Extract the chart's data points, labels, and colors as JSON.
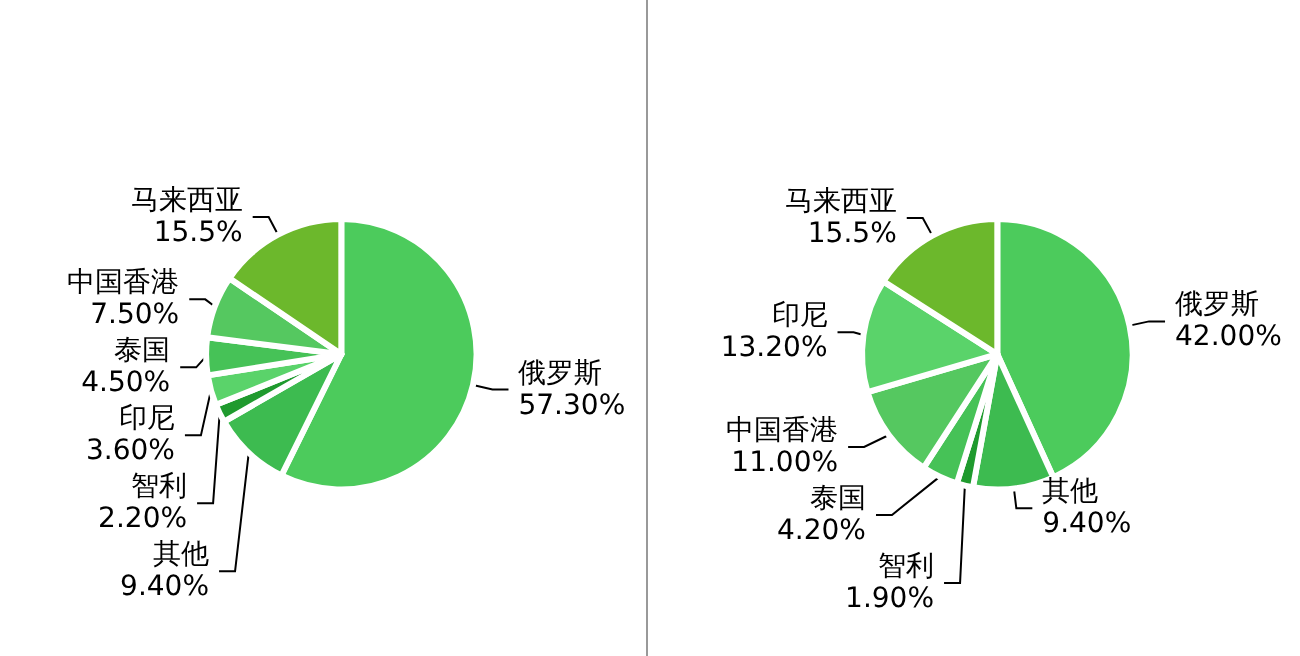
{
  "chart_data": [
    {
      "type": "pie",
      "categories": [
        "俄罗斯",
        "其他",
        "智利",
        "印尼",
        "泰国",
        "中国香港",
        "马来西亚"
      ],
      "values": [
        57.3,
        9.4,
        2.2,
        3.6,
        4.5,
        7.5,
        15.5
      ],
      "value_labels": [
        "57.30%",
        "9.40%",
        "2.20%",
        "3.60%",
        "4.50%",
        "7.50%",
        "15.5%"
      ],
      "colors": [
        "#4ccb5c",
        "#3dbb50",
        "#1f9a2e",
        "#5ad36a",
        "#46c257",
        "#55c860",
        "#6cb82c"
      ]
    },
    {
      "type": "pie",
      "categories": [
        "俄罗斯",
        "其他",
        "智利",
        "泰国",
        "中国香港",
        "印尼",
        "马来西亚"
      ],
      "values": [
        42.0,
        9.4,
        1.9,
        4.2,
        11.0,
        13.2,
        15.5
      ],
      "value_labels": [
        "42.00%",
        "9.40%",
        "1.90%",
        "4.20%",
        "11.00%",
        "13.20%",
        "15.5%"
      ],
      "colors": [
        "#4ccb5c",
        "#3dbb50",
        "#1f9a2e",
        "#46c257",
        "#55c860",
        "#5ad36a",
        "#6cb82c"
      ]
    }
  ]
}
